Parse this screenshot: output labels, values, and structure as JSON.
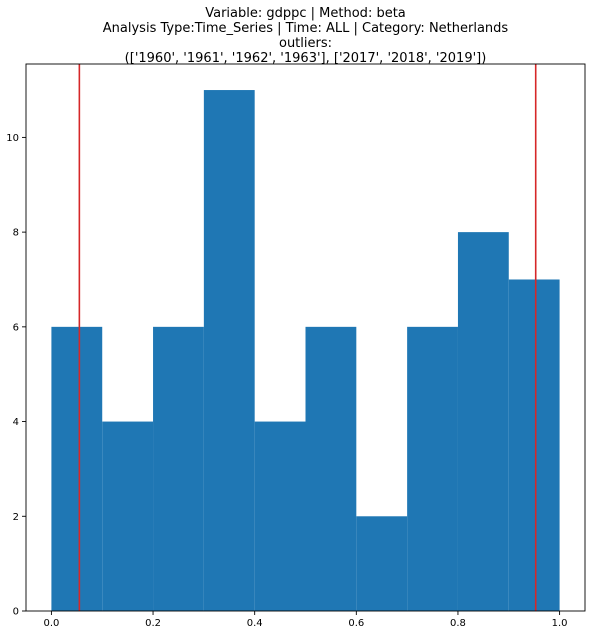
{
  "chart_data": {
    "type": "bar",
    "title_lines": [
      "Variable: gdppc | Method: beta",
      "Analysis Type:Time_Series | Time: ALL | Category: Netherlands",
      "outliers:",
      "(['1960', '1961', '1962', '1963'], ['2017', '2018', '2019'])"
    ],
    "xlabel": "",
    "ylabel": "",
    "bins": [
      {
        "start": 0.0,
        "end": 0.1,
        "count": 6
      },
      {
        "start": 0.1,
        "end": 0.2,
        "count": 4
      },
      {
        "start": 0.2,
        "end": 0.3,
        "count": 6
      },
      {
        "start": 0.3,
        "end": 0.4,
        "count": 11
      },
      {
        "start": 0.4,
        "end": 0.5,
        "count": 4
      },
      {
        "start": 0.5,
        "end": 0.6,
        "count": 6
      },
      {
        "start": 0.6,
        "end": 0.7,
        "count": 2
      },
      {
        "start": 0.7,
        "end": 0.8,
        "count": 6
      },
      {
        "start": 0.8,
        "end": 0.9,
        "count": 8
      },
      {
        "start": 0.9,
        "end": 1.0,
        "count": 7
      }
    ],
    "xlim": [
      -0.05,
      1.05
    ],
    "ylim": [
      0,
      11.55
    ],
    "xticks": [
      0.0,
      0.2,
      0.4,
      0.6,
      0.8,
      1.0
    ],
    "xtick_labels": [
      "0.0",
      "0.2",
      "0.4",
      "0.6",
      "0.8",
      "1.0"
    ],
    "yticks": [
      0,
      2,
      4,
      6,
      8,
      10
    ],
    "ytick_labels": [
      "0",
      "2",
      "4",
      "6",
      "8",
      "10"
    ],
    "vertical_lines": [
      0.055,
      0.953
    ],
    "grid": false,
    "legend": "none",
    "colors": {
      "bar": "#1f77b4",
      "vline": "#d62728",
      "axis": "#000000"
    }
  }
}
